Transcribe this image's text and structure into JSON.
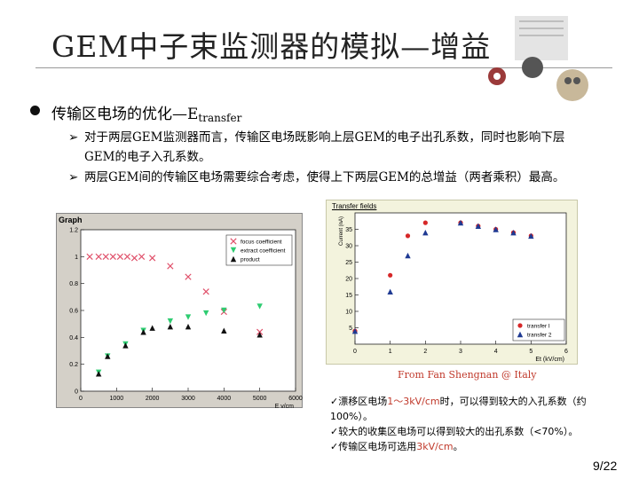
{
  "slide": {
    "title": "GEM中子束监测器的模拟—增益",
    "bullet": "传输区电场的优化—E",
    "bullet_sub": "transfer",
    "sub_items": [
      "对于两层GEM监测器而言，传输区电场既影响上层GEM的电子出孔系数，同时也影响下层GEM的电子入孔系数。",
      "两层GEM间的传输区电场需要综合考虑，使得上下两层GEM的总增益（两者乘积）最高。"
    ],
    "caption": "From Fan Shengnan @ Italy",
    "notes": [
      {
        "pre": "漂移区电场",
        "red": "1～3kV/cm",
        "post": "时，可以得到较大的入孔系数（约100%）。"
      },
      {
        "pre": "较大的收集区电场可以得到较大的出孔系数（<70%）。",
        "red": "",
        "post": ""
      },
      {
        "pre": "传输区电场可选用",
        "red": "3kV/cm",
        "post": "。"
      }
    ],
    "page": "9/22"
  },
  "chart_data": [
    {
      "type": "scatter",
      "title": "Graph",
      "xlabel": "E v/cm",
      "ylabel": "",
      "xlim": [
        0,
        6000
      ],
      "ylim": [
        0,
        1.2
      ],
      "x_ticks": [
        "0",
        "1000",
        "2000",
        "3000",
        "4000",
        "5000",
        "6000"
      ],
      "y_ticks": [
        "0",
        "0.2",
        "0.4",
        "0.6",
        "0.8",
        "1",
        "1.2"
      ],
      "legend": "top-right",
      "series": [
        {
          "name": "focus coefficient",
          "color": "#e0506a",
          "marker": "x",
          "points": [
            [
              250,
              1.0
            ],
            [
              500,
              1.0
            ],
            [
              700,
              1.0
            ],
            [
              900,
              1.0
            ],
            [
              1100,
              1.0
            ],
            [
              1300,
              1.0
            ],
            [
              1500,
              0.99
            ],
            [
              1700,
              1.0
            ],
            [
              2000,
              0.99
            ],
            [
              2500,
              0.93
            ],
            [
              3000,
              0.85
            ],
            [
              3500,
              0.74
            ],
            [
              4000,
              0.59
            ],
            [
              5000,
              0.44
            ]
          ]
        },
        {
          "name": "extract coefficient",
          "color": "#2ecc71",
          "marker": "triangle-down",
          "points": [
            [
              500,
              0.14
            ],
            [
              750,
              0.26
            ],
            [
              1250,
              0.35
            ],
            [
              1750,
              0.45
            ],
            [
              2500,
              0.52
            ],
            [
              3000,
              0.55
            ],
            [
              3500,
              0.58
            ],
            [
              4000,
              0.6
            ],
            [
              5000,
              0.63
            ]
          ]
        },
        {
          "name": "product",
          "color": "#111111",
          "marker": "triangle",
          "points": [
            [
              500,
              0.13
            ],
            [
              750,
              0.26
            ],
            [
              1250,
              0.34
            ],
            [
              1750,
              0.44
            ],
            [
              2000,
              0.47
            ],
            [
              2500,
              0.48
            ],
            [
              3000,
              0.48
            ],
            [
              4000,
              0.45
            ],
            [
              5000,
              0.42
            ]
          ]
        }
      ]
    },
    {
      "type": "scatter",
      "title": "Transfer fields",
      "xlabel": "Et (kV/cm)",
      "ylabel": "Current (nA)",
      "xlim": [
        0,
        6
      ],
      "ylim": [
        0,
        40
      ],
      "x_ticks": [
        "0",
        "1",
        "2",
        "3",
        "4",
        "5",
        "6"
      ],
      "y_ticks": [
        "5",
        "10",
        "15",
        "20",
        "25",
        "30",
        "35"
      ],
      "legend": "bottom-right",
      "series": [
        {
          "name": "transfer I",
          "color": "#d62728",
          "marker": "circle",
          "points": [
            [
              0,
              4
            ],
            [
              1,
              21
            ],
            [
              1.5,
              33
            ],
            [
              2,
              37
            ],
            [
              3,
              37
            ],
            [
              3.5,
              36
            ],
            [
              4,
              35
            ],
            [
              4.5,
              34
            ],
            [
              5,
              33
            ]
          ]
        },
        {
          "name": "transfer 2",
          "color": "#1f3a93",
          "marker": "triangle",
          "points": [
            [
              0,
              4
            ],
            [
              1,
              16
            ],
            [
              1.5,
              27
            ],
            [
              2,
              34
            ],
            [
              3,
              37
            ],
            [
              3.5,
              36
            ],
            [
              4,
              35
            ],
            [
              4.5,
              34
            ],
            [
              5,
              33
            ]
          ]
        }
      ]
    }
  ]
}
